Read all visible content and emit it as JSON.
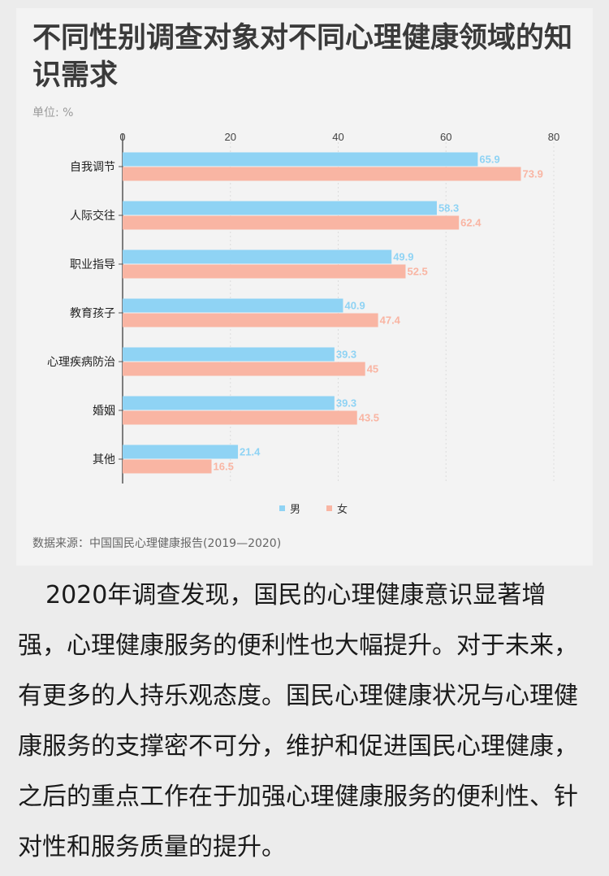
{
  "title": "不同性别调查对象对不同心理健康领域的知识需求",
  "unit": "单位: %",
  "source": "数据来源：中国国民心理健康报告(2019—2020)",
  "paragraph": "2020年调查发现，国民的心理健康意识显著增强，心理健康服务的便利性也大幅提升。对于未来，有更多的人持乐观态度。国民心理健康状况与心理健康服务的支撑密不可分，维护和促进国民心理健康，之后的重点工作在于加强心理健康服务的便利性、针对性和服务质量的提升。",
  "colors": {
    "male": "#8fd3f4",
    "female": "#f9b5a3",
    "axis": "#555555",
    "grid": "#dcdcdc"
  },
  "chart_data": {
    "type": "bar",
    "orientation": "horizontal",
    "categories": [
      "自我调节",
      "人际交往",
      "职业指导",
      "教育孩子",
      "心理疾病防治",
      "婚姻",
      "其他"
    ],
    "series": [
      {
        "name": "男",
        "values": [
          65.9,
          58.3,
          49.9,
          40.9,
          39.3,
          39.3,
          21.4
        ]
      },
      {
        "name": "女",
        "values": [
          73.9,
          62.4,
          52.5,
          47.4,
          45,
          43.5,
          16.5
        ]
      }
    ],
    "xlim": [
      0,
      80
    ],
    "xticks": [
      "0",
      "20",
      "40",
      "60",
      "80"
    ],
    "grid": true,
    "legend": "bottom"
  }
}
